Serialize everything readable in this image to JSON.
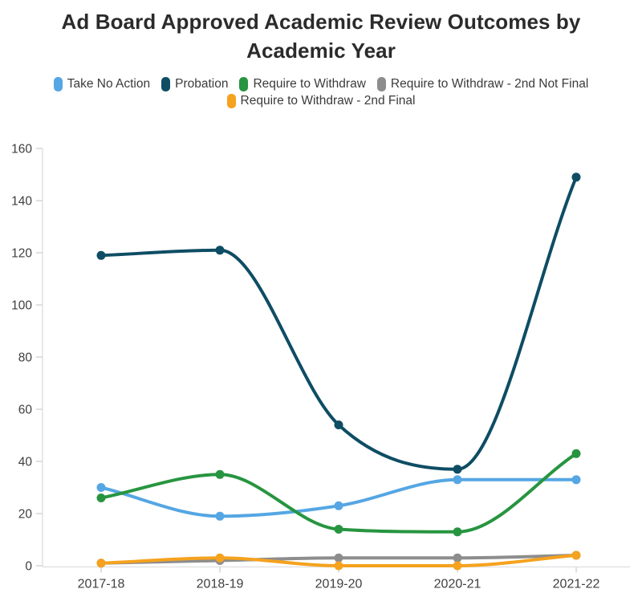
{
  "title": "Ad Board Approved Academic Review Outcomes by Academic Year",
  "chart_data": {
    "type": "line",
    "title": "Ad Board Approved Academic Review Outcomes by Academic Year",
    "categories": [
      "2017-18",
      "2018-19",
      "2019-20",
      "2020-21",
      "2021-22"
    ],
    "series": [
      {
        "name": "Take No Action",
        "color": "#55a6e3",
        "values": [
          30,
          19,
          23,
          33,
          33
        ]
      },
      {
        "name": "Probation",
        "color": "#0e4d64",
        "values": [
          119,
          121,
          54,
          37,
          149
        ]
      },
      {
        "name": "Require to Withdraw",
        "color": "#279540",
        "values": [
          26,
          35,
          14,
          13,
          43
        ]
      },
      {
        "name": "Require to Withdraw - 2nd Not Final",
        "color": "#8d8d8d",
        "values": [
          1,
          2,
          3,
          3,
          4
        ]
      },
      {
        "name": "Require to Withdraw - 2nd Final",
        "color": "#f5a21e",
        "values": [
          1,
          3,
          0,
          0,
          4
        ]
      }
    ],
    "xlabel": "",
    "ylabel": "",
    "ylim": [
      0,
      160
    ],
    "ytick_step": 20,
    "grid": false,
    "legend_position": "top",
    "interpolation": "monotone-cubic",
    "axis_color": "#e2e2e2",
    "tick_color": "#d6d6d6",
    "tick_label_color": "#3f3f3f"
  }
}
